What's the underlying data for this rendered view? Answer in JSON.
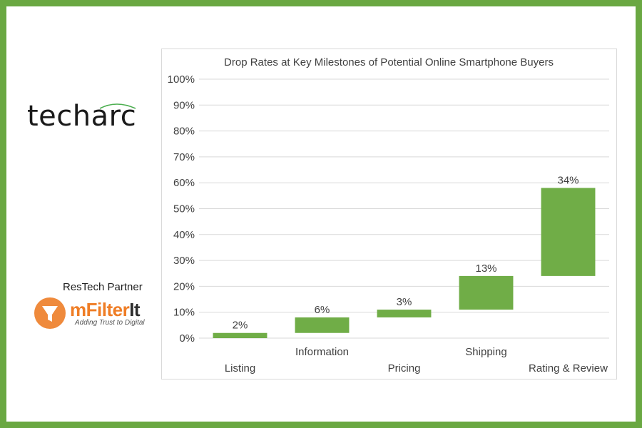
{
  "branding": {
    "techarc_logo": "techarc",
    "partner_label": "ResTech Partner",
    "mfilterit_name_part1": "mFilter",
    "mfilterit_name_part2": "It",
    "mfilterit_tagline": "Adding Trust to Digital"
  },
  "colors": {
    "frame": "#6aa842",
    "bar": "#70ad47",
    "accent_orange": "#ef8a3c"
  },
  "chart_data": {
    "type": "bar",
    "subtype": "waterfall",
    "title": "Drop Rates at Key Milestones of Potential Online Smartphone Buyers",
    "categories": [
      "Listing",
      "Information",
      "Pricing",
      "Shipping",
      "Rating & Review"
    ],
    "series": [
      {
        "values": [
          2,
          6,
          3,
          13,
          34
        ],
        "base": [
          0,
          2,
          8,
          11,
          24
        ],
        "labels": [
          "2%",
          "6%",
          "3%",
          "13%",
          "34%"
        ]
      }
    ],
    "ylim": [
      0,
      100
    ],
    "yticks": [
      "0%",
      "10%",
      "20%",
      "30%",
      "40%",
      "50%",
      "60%",
      "70%",
      "80%",
      "90%",
      "100%"
    ],
    "grid": true,
    "xlabel": "",
    "ylabel": ""
  }
}
